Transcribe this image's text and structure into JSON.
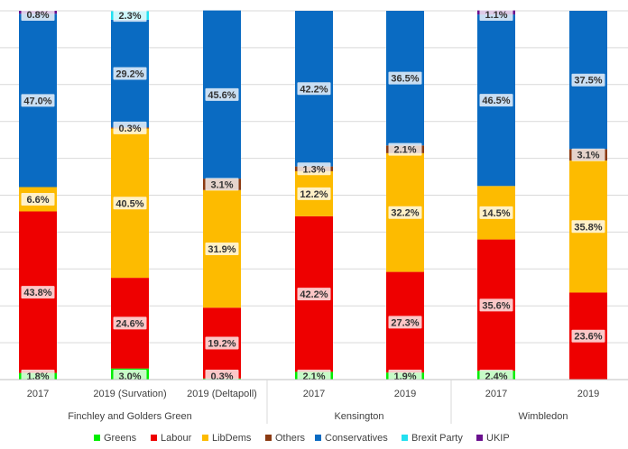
{
  "chart_data": {
    "type": "bar",
    "stacked": true,
    "percent_stacked": true,
    "ylim": [
      0,
      100
    ],
    "grid": true,
    "legend_position": "bottom",
    "groups": [
      {
        "name": "Finchley and Golders Green",
        "categories": [
          "2017",
          "2019 (Survation)",
          "2019 (Deltapoll)"
        ]
      },
      {
        "name": "Kensington",
        "categories": [
          "2017",
          "2019"
        ]
      },
      {
        "name": "Wimbledon",
        "categories": [
          "2017",
          "2019"
        ]
      }
    ],
    "series": [
      {
        "name": "Greens",
        "color": "#00ee00",
        "values": [
          1.8,
          3.0,
          0.3,
          2.1,
          1.9,
          2.4,
          0
        ],
        "labels": [
          "1.8%",
          "3.0%",
          "0.3%",
          "2.1%",
          "1.9%",
          "2.4%",
          ""
        ]
      },
      {
        "name": "Labour",
        "color": "#ee0000",
        "values": [
          43.8,
          24.6,
          19.2,
          42.2,
          27.3,
          35.6,
          23.6
        ],
        "labels": [
          "43.8%",
          "24.6%",
          "19.2%",
          "42.2%",
          "27.3%",
          "35.6%",
          "23.6%"
        ]
      },
      {
        "name": "LibDems",
        "color": "#fdbb00",
        "values": [
          6.6,
          40.5,
          31.9,
          12.2,
          32.2,
          14.5,
          35.8
        ],
        "labels": [
          "6.6%",
          "40.5%",
          "31.9%",
          "12.2%",
          "32.2%",
          "14.5%",
          "35.8%"
        ]
      },
      {
        "name": "Others",
        "color": "#8b3a12",
        "values": [
          0,
          0.3,
          3.1,
          1.3,
          2.1,
          0,
          3.1
        ],
        "labels": [
          "",
          "0.3%",
          "3.1%",
          "1.3%",
          "2.1%",
          "",
          "3.1%"
        ]
      },
      {
        "name": "Conservatives",
        "color": "#0a6bc2",
        "values": [
          47.0,
          29.2,
          45.6,
          42.2,
          36.5,
          46.5,
          37.5
        ],
        "labels": [
          "47.0%",
          "29.2%",
          "45.6%",
          "42.2%",
          "36.5%",
          "46.5%",
          "37.5%"
        ]
      },
      {
        "name": "Brexit Party",
        "color": "#22e0f0",
        "values": [
          0,
          2.3,
          0,
          0,
          0,
          0,
          0
        ],
        "labels": [
          "",
          "2.3%",
          "",
          "",
          "",
          "",
          ""
        ]
      },
      {
        "name": "UKIP",
        "color": "#6a0f8e",
        "values": [
          0.8,
          0,
          0,
          0,
          0,
          1.1,
          0
        ],
        "labels": [
          "0.8%",
          "",
          "",
          "",
          "",
          "1.1%",
          ""
        ]
      }
    ]
  }
}
